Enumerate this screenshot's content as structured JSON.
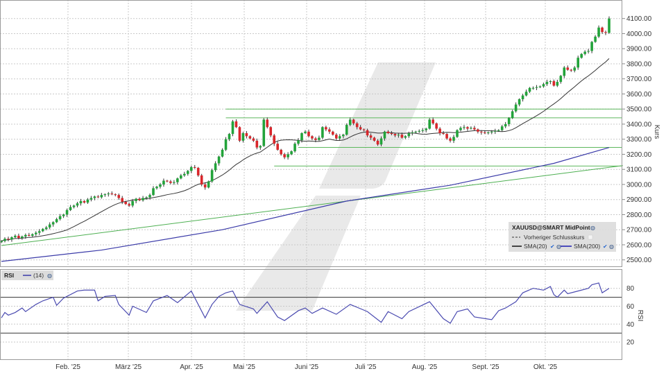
{
  "chart_data": [
    {
      "type": "candlestick",
      "instrument_legend": "XAUUSD@SMART MidPoint",
      "prev_close_legend": "Vorheriger Schlusskurs",
      "sma20_legend": "SMA(20)",
      "sma200_legend": "SMA(200)",
      "ylabel": "Kurs",
      "ylim": [
        2450,
        4200
      ],
      "y_ticks": [
        "2500.00",
        "2600.00",
        "2700.00",
        "2800.00",
        "2900.00",
        "3000.00",
        "3100.00",
        "3200.00",
        "3300.00",
        "3400.00",
        "3500.00",
        "3600.00",
        "3700.00",
        "3800.00",
        "3900.00",
        "4000.00",
        "4100.00"
      ],
      "x_ticks": [
        "Feb. '25",
        "März '25",
        "Apr. '25",
        "Mai '25",
        "Juni '25",
        "Juli '25",
        "Aug. '25",
        "Sept. '25",
        "Okt. '25"
      ],
      "grid": true,
      "legend_placement": "bottom-right",
      "colors": {
        "up": "#22a33a",
        "down": "#d9262b",
        "sma20": "#333333",
        "sma200": "#3a3aa8",
        "trendline": "#4caf50",
        "levels": "#5cb85c"
      },
      "closes": [
        2625,
        2640,
        2635,
        2650,
        2660,
        2645,
        2655,
        2665,
        2660,
        2670,
        2680,
        2690,
        2705,
        2715,
        2735,
        2750,
        2770,
        2790,
        2800,
        2830,
        2850,
        2860,
        2875,
        2890,
        2880,
        2900,
        2910,
        2920,
        2915,
        2930,
        2935,
        2940,
        2935,
        2930,
        2910,
        2885,
        2870,
        2860,
        2890,
        2905,
        2895,
        2910,
        2915,
        2930,
        2975,
        2985,
        3000,
        3025,
        3020,
        3010,
        3015,
        3040,
        3060,
        3070,
        3090,
        3115,
        3110,
        3060,
        3000,
        2980,
        3020,
        3095,
        3140,
        3185,
        3230,
        3300,
        3335,
        3418,
        3380,
        3290,
        3340,
        3320,
        3305,
        3290,
        3245,
        3255,
        3430,
        3380,
        3325,
        3270,
        3230,
        3200,
        3180,
        3200,
        3220,
        3270,
        3293,
        3340,
        3350,
        3320,
        3305,
        3295,
        3310,
        3380,
        3365,
        3350,
        3330,
        3305,
        3320,
        3330,
        3395,
        3430,
        3405,
        3380,
        3365,
        3360,
        3325,
        3310,
        3290,
        3265,
        3305,
        3350,
        3340,
        3335,
        3325,
        3330,
        3310,
        3320,
        3340,
        3345,
        3350,
        3355,
        3360,
        3370,
        3430,
        3405,
        3370,
        3340,
        3335,
        3305,
        3290,
        3315,
        3360,
        3375,
        3380,
        3370,
        3375,
        3365,
        3350,
        3345,
        3340,
        3345,
        3350,
        3355,
        3360,
        3385,
        3400,
        3440,
        3485,
        3530,
        3565,
        3590,
        3615,
        3640,
        3640,
        3645,
        3650,
        3665,
        3680,
        3685,
        3655,
        3680,
        3720,
        3775,
        3760,
        3755,
        3775,
        3840,
        3865,
        3880,
        3885,
        3945,
        3980,
        4040,
        4010,
        4005,
        4100
      ],
      "sma200": [
        [
          0,
          2490
        ],
        [
          29,
          2565
        ],
        [
          64,
          2700
        ],
        [
          100,
          2890
        ],
        [
          130,
          2995
        ],
        [
          160,
          3140
        ],
        [
          176,
          3245
        ]
      ],
      "trendline": [
        [
          0,
          2595
        ],
        [
          180,
          3125
        ]
      ],
      "levels": [
        {
          "value": 3500,
          "from_index": 65
        },
        {
          "value": 3442,
          "from_index": 65
        },
        {
          "value": 3246,
          "from_index": 86
        },
        {
          "value": 3122,
          "from_index": 79
        }
      ]
    },
    {
      "type": "line",
      "legend_name": "RSI",
      "legend_period": "(14)",
      "ylabel": "RSI",
      "ylim": [
        10,
        95
      ],
      "y_ticks": [
        "20",
        "40",
        "60",
        "80"
      ],
      "bands": [
        30,
        70
      ],
      "color": "#4a4ab0",
      "values": [
        [
          0,
          47
        ],
        [
          1,
          53
        ],
        [
          2,
          50
        ],
        [
          4,
          53
        ],
        [
          6,
          58
        ],
        [
          7,
          54
        ],
        [
          10,
          62
        ],
        [
          12,
          66
        ],
        [
          15,
          70
        ],
        [
          16,
          61
        ],
        [
          18,
          69
        ],
        [
          22,
          77
        ],
        [
          24,
          78
        ],
        [
          27,
          78
        ],
        [
          28,
          66
        ],
        [
          30,
          71
        ],
        [
          33,
          72
        ],
        [
          34,
          62
        ],
        [
          37,
          50
        ],
        [
          38,
          60
        ],
        [
          42,
          53
        ],
        [
          44,
          66
        ],
        [
          48,
          72
        ],
        [
          51,
          64
        ],
        [
          55,
          77
        ],
        [
          59,
          47
        ],
        [
          61,
          62
        ],
        [
          63,
          71
        ],
        [
          65,
          75
        ],
        [
          67,
          77
        ],
        [
          69,
          62
        ],
        [
          73,
          57
        ],
        [
          74,
          52
        ],
        [
          77,
          65
        ],
        [
          80,
          48
        ],
        [
          82,
          44
        ],
        [
          86,
          55
        ],
        [
          88,
          58
        ],
        [
          90,
          52
        ],
        [
          93,
          58
        ],
        [
          97,
          51
        ],
        [
          101,
          62
        ],
        [
          106,
          54
        ],
        [
          110,
          42
        ],
        [
          112,
          54
        ],
        [
          116,
          46
        ],
        [
          118,
          54
        ],
        [
          124,
          65
        ],
        [
          128,
          46
        ],
        [
          130,
          41
        ],
        [
          132,
          54
        ],
        [
          135,
          57
        ],
        [
          137,
          48
        ],
        [
          142,
          45
        ],
        [
          144,
          55
        ],
        [
          146,
          58
        ],
        [
          149,
          65
        ],
        [
          150,
          70
        ],
        [
          151,
          75
        ],
        [
          154,
          80
        ],
        [
          157,
          78
        ],
        [
          159,
          82
        ],
        [
          160,
          73
        ],
        [
          161,
          70
        ],
        [
          163,
          78
        ],
        [
          164,
          74
        ],
        [
          166,
          76
        ],
        [
          170,
          80
        ],
        [
          171,
          84
        ],
        [
          173,
          86
        ],
        [
          174,
          75
        ],
        [
          176,
          80
        ]
      ]
    }
  ]
}
